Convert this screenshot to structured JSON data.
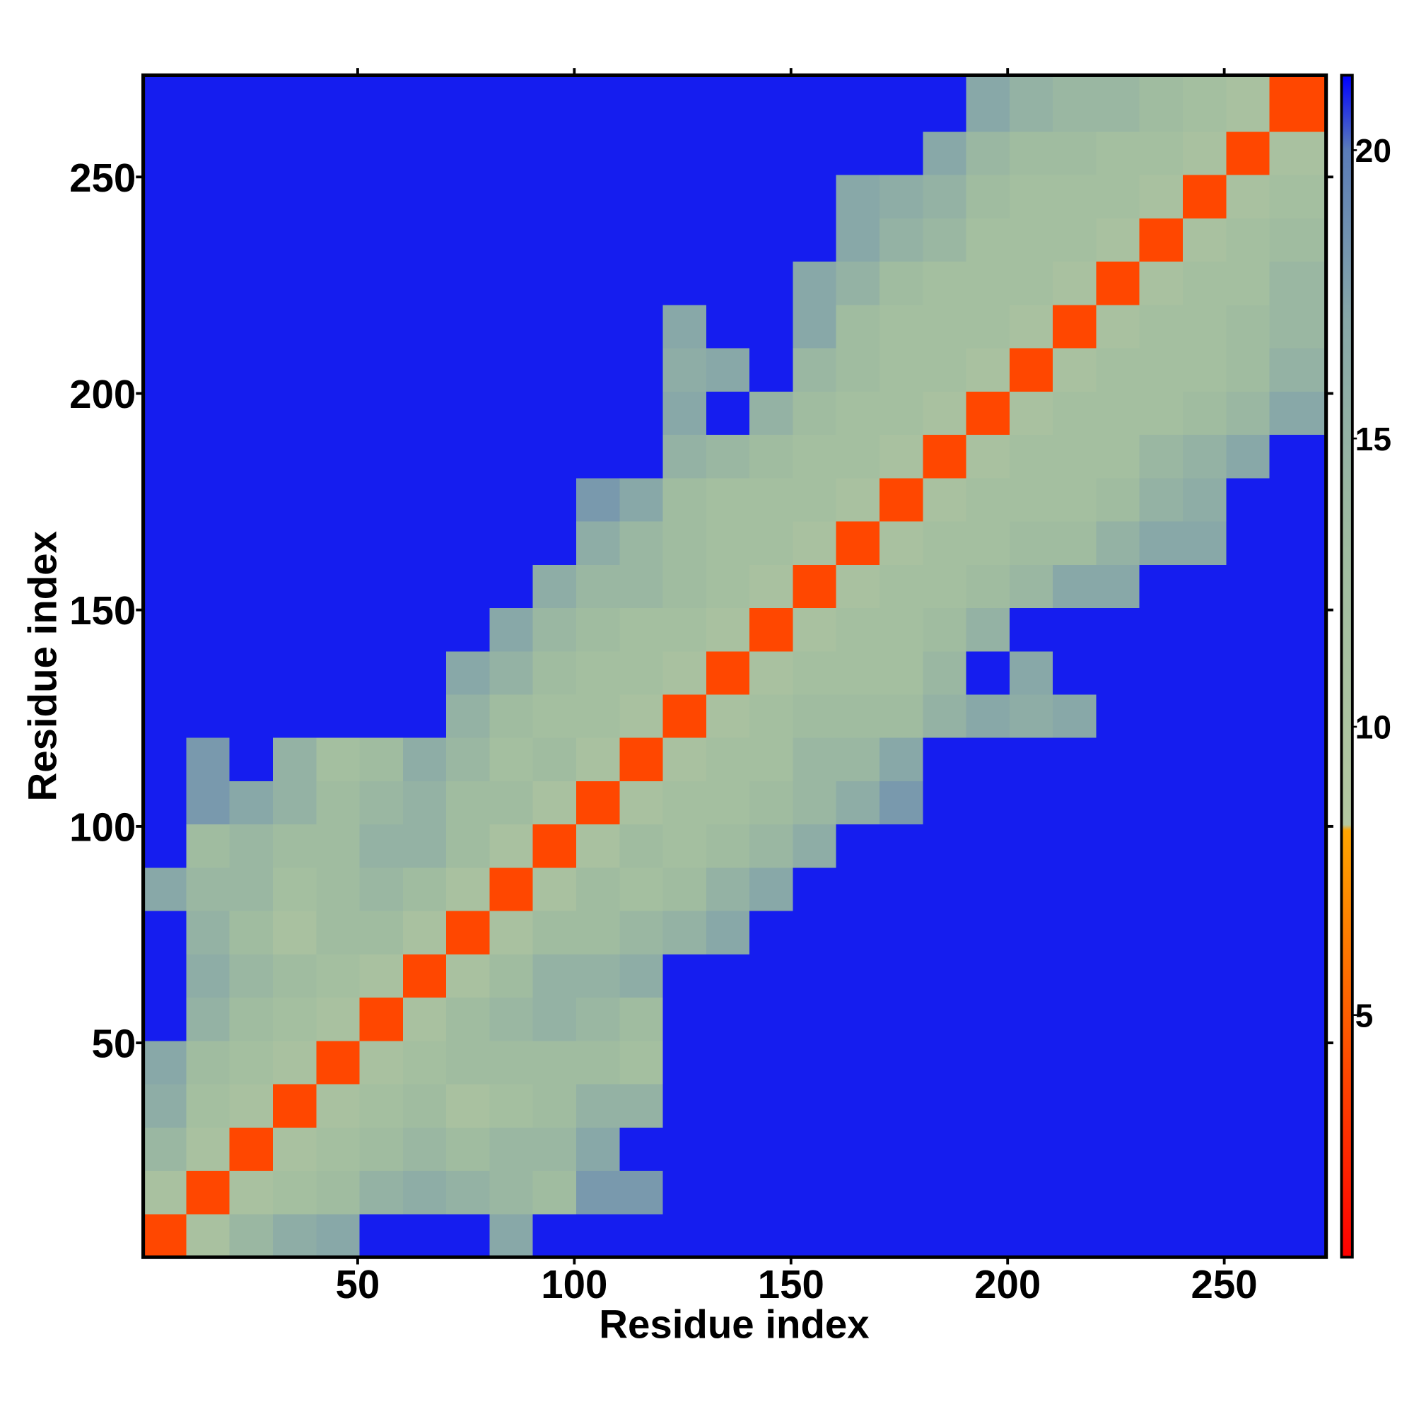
{
  "chart_data": {
    "type": "heatmap",
    "x_label": "Residue index",
    "y_label": "Residue index",
    "x_bins": [
      0.5,
      10.5,
      20.5,
      30.5,
      40.5,
      50.5,
      60.5,
      70.5,
      80.5,
      90.5,
      100.5,
      110.5,
      120.5,
      130.5,
      140.5,
      150.5,
      160.5,
      170.5,
      180.5,
      190.5,
      200.5,
      210.5,
      220.5,
      230.5,
      240.5,
      250.5,
      260.5,
      273.5
    ],
    "y_bins": [
      0.5,
      10.5,
      20.5,
      30.5,
      40.5,
      50.5,
      60.5,
      70.5,
      80.5,
      90.5,
      100.5,
      110.5,
      120.5,
      130.5,
      140.5,
      150.5,
      160.5,
      170.5,
      180.5,
      190.5,
      200.5,
      210.5,
      220.5,
      230.5,
      240.5,
      250.5,
      260.5,
      273.5
    ],
    "z": [
      [
        4,
        11,
        14,
        16,
        17,
        21,
        21,
        21,
        17,
        21,
        21,
        21,
        21,
        21,
        21,
        21,
        21,
        21,
        21,
        21,
        21,
        21,
        21,
        21,
        21,
        21,
        21
      ],
      [
        11,
        4,
        11,
        12,
        13,
        15,
        16,
        15,
        14,
        13,
        18,
        18,
        21,
        21,
        21,
        21,
        21,
        21,
        21,
        21,
        21,
        21,
        21,
        21,
        21,
        21,
        21
      ],
      [
        14,
        11,
        4,
        11,
        12,
        13,
        14,
        13,
        14,
        14,
        17,
        21,
        21,
        21,
        21,
        21,
        21,
        21,
        21,
        21,
        21,
        21,
        21,
        21,
        21,
        21,
        21
      ],
      [
        16,
        12,
        11,
        4,
        11,
        12,
        13,
        11,
        12,
        13,
        15,
        15,
        21,
        21,
        21,
        21,
        21,
        21,
        21,
        21,
        21,
        21,
        21,
        21,
        21,
        21,
        21
      ],
      [
        17,
        13,
        12,
        11,
        4,
        11,
        12,
        13,
        13,
        13,
        13,
        12,
        21,
        21,
        21,
        21,
        21,
        21,
        21,
        21,
        21,
        21,
        21,
        21,
        21,
        21,
        21
      ],
      [
        21,
        15,
        13,
        12,
        11,
        4,
        11,
        13,
        14,
        15,
        14,
        13,
        21,
        21,
        21,
        21,
        21,
        21,
        21,
        21,
        21,
        21,
        21,
        21,
        21,
        21,
        21
      ],
      [
        21,
        16,
        14,
        13,
        12,
        11,
        4,
        11,
        13,
        15,
        15,
        16,
        21,
        21,
        21,
        21,
        21,
        21,
        21,
        21,
        21,
        21,
        21,
        21,
        21,
        21,
        21
      ],
      [
        21,
        15,
        13,
        11,
        13,
        13,
        11,
        4,
        11,
        13,
        13,
        14,
        15,
        17,
        21,
        21,
        21,
        21,
        21,
        21,
        21,
        21,
        21,
        21,
        21,
        21,
        21
      ],
      [
        17,
        14,
        14,
        12,
        13,
        14,
        13,
        11,
        4,
        11,
        13,
        12,
        13,
        15,
        17,
        21,
        21,
        21,
        21,
        21,
        21,
        21,
        21,
        21,
        21,
        21,
        21
      ],
      [
        21,
        13,
        14,
        13,
        13,
        15,
        15,
        13,
        11,
        4,
        11,
        13,
        12,
        13,
        14,
        16,
        21,
        21,
        21,
        21,
        21,
        21,
        21,
        21,
        21,
        21,
        21
      ],
      [
        21,
        18,
        17,
        15,
        13,
        14,
        15,
        13,
        13,
        11,
        4,
        11,
        12,
        12,
        13,
        14,
        16,
        18,
        21,
        21,
        21,
        21,
        21,
        21,
        21,
        21,
        21
      ],
      [
        21,
        18,
        21,
        15,
        12,
        13,
        16,
        14,
        12,
        13,
        11,
        4,
        11,
        12,
        12,
        14,
        14,
        17,
        21,
        21,
        21,
        21,
        21,
        21,
        21,
        21,
        21
      ],
      [
        21,
        21,
        21,
        21,
        21,
        21,
        21,
        15,
        13,
        12,
        12,
        11,
        4,
        11,
        12,
        13,
        13,
        13,
        15,
        17,
        16,
        17,
        21,
        21,
        21,
        21,
        21
      ],
      [
        21,
        21,
        21,
        21,
        21,
        21,
        21,
        17,
        15,
        13,
        12,
        12,
        11,
        4,
        11,
        12,
        12,
        12,
        14,
        21,
        17,
        21,
        21,
        21,
        21,
        21,
        21
      ],
      [
        21,
        21,
        21,
        21,
        21,
        21,
        21,
        21,
        17,
        14,
        13,
        12,
        12,
        11,
        4,
        11,
        12,
        12,
        13,
        15,
        21,
        21,
        21,
        21,
        21,
        21,
        21
      ],
      [
        21,
        21,
        21,
        21,
        21,
        21,
        21,
        21,
        21,
        16,
        14,
        14,
        13,
        12,
        11,
        4,
        11,
        12,
        12,
        13,
        14,
        17,
        17,
        21,
        21,
        21,
        21
      ],
      [
        21,
        21,
        21,
        21,
        21,
        21,
        21,
        21,
        21,
        21,
        16,
        14,
        13,
        12,
        12,
        11,
        4,
        11,
        12,
        12,
        13,
        13,
        15,
        17,
        17,
        21,
        21
      ],
      [
        21,
        21,
        21,
        21,
        21,
        21,
        21,
        21,
        21,
        21,
        18,
        17,
        13,
        12,
        12,
        12,
        11,
        4,
        11,
        12,
        12,
        12,
        13,
        15,
        16,
        21,
        21
      ],
      [
        21,
        21,
        21,
        21,
        21,
        21,
        21,
        21,
        21,
        21,
        21,
        21,
        15,
        14,
        13,
        12,
        12,
        11,
        4,
        11,
        12,
        12,
        12,
        14,
        15,
        17,
        21
      ],
      [
        21,
        21,
        21,
        21,
        21,
        21,
        21,
        21,
        21,
        21,
        21,
        21,
        17,
        21,
        15,
        13,
        12,
        12,
        11,
        4,
        11,
        12,
        12,
        12,
        13,
        14,
        17
      ],
      [
        21,
        21,
        21,
        21,
        21,
        21,
        21,
        21,
        21,
        21,
        21,
        21,
        16,
        17,
        21,
        14,
        13,
        12,
        12,
        11,
        4,
        11,
        12,
        12,
        12,
        13,
        15
      ],
      [
        21,
        21,
        21,
        21,
        21,
        21,
        21,
        21,
        21,
        21,
        21,
        21,
        17,
        21,
        21,
        17,
        13,
        12,
        12,
        12,
        11,
        4,
        11,
        12,
        12,
        13,
        14
      ],
      [
        21,
        21,
        21,
        21,
        21,
        21,
        21,
        21,
        21,
        21,
        21,
        21,
        21,
        21,
        21,
        17,
        15,
        13,
        12,
        12,
        12,
        11,
        4,
        11,
        12,
        12,
        14
      ],
      [
        21,
        21,
        21,
        21,
        21,
        21,
        21,
        21,
        21,
        21,
        21,
        21,
        21,
        21,
        21,
        21,
        17,
        15,
        14,
        12,
        12,
        12,
        11,
        4,
        11,
        12,
        13
      ],
      [
        21,
        21,
        21,
        21,
        21,
        21,
        21,
        21,
        21,
        21,
        21,
        21,
        21,
        21,
        21,
        21,
        17,
        16,
        15,
        13,
        12,
        12,
        12,
        11,
        4,
        11,
        12
      ],
      [
        21,
        21,
        21,
        21,
        21,
        21,
        21,
        21,
        21,
        21,
        21,
        21,
        21,
        21,
        21,
        21,
        21,
        21,
        17,
        14,
        13,
        13,
        12,
        12,
        11,
        4,
        11
      ],
      [
        21,
        21,
        21,
        21,
        21,
        21,
        21,
        21,
        21,
        21,
        21,
        21,
        21,
        21,
        21,
        21,
        21,
        21,
        21,
        17,
        15,
        14,
        14,
        13,
        12,
        11,
        4
      ]
    ],
    "xlim": [
      0.5,
      273.5
    ],
    "ylim": [
      0.5,
      273.5
    ],
    "xticks": [
      50,
      100,
      150,
      200,
      250
    ],
    "yticks": [
      50,
      100,
      150,
      200,
      250
    ],
    "colorbar": {
      "zlim": [
        0.8,
        21.3
      ],
      "ticks": [
        5,
        10,
        15,
        20
      ],
      "colorscale": [
        [
          0.8,
          "#ff0000"
        ],
        [
          8.2,
          "#ffa500"
        ],
        [
          8.3,
          "#b4c8a0"
        ],
        [
          13,
          "#a0bca0"
        ],
        [
          17,
          "#88a8a8"
        ],
        [
          20,
          "#5a7cb8"
        ],
        [
          21.3,
          "#0000ff"
        ]
      ]
    }
  }
}
